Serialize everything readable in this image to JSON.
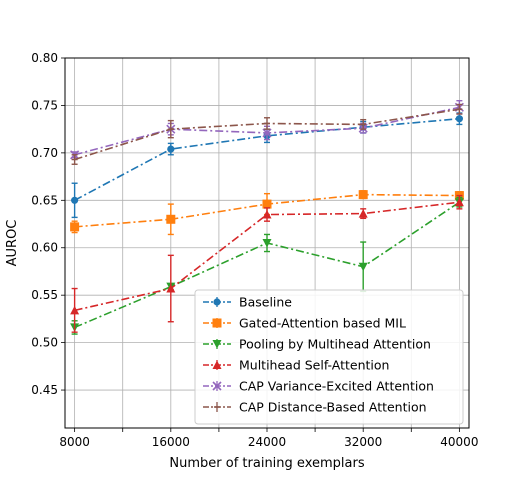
{
  "chart_data": {
    "type": "line",
    "title": "",
    "xlabel": "Number of training exemplars",
    "ylabel": "AUROC",
    "x": [
      8000,
      16000,
      24000,
      32000,
      40000
    ],
    "xticks": [
      8000,
      16000,
      24000,
      32000,
      40000
    ],
    "xtick_labels": [
      "8000",
      "16000",
      "24000",
      "32000",
      "40000"
    ],
    "xlim": [
      7200,
      40800
    ],
    "yticks": [
      0.45,
      0.5,
      0.55,
      0.6,
      0.65,
      0.7,
      0.75,
      0.8
    ],
    "ytick_labels": [
      "0.45",
      "0.50",
      "0.55",
      "0.60",
      "0.65",
      "0.70",
      "0.75",
      "0.80"
    ],
    "ylim": [
      0.41,
      0.8
    ],
    "grid": true,
    "legend_position": "lower-right",
    "series": [
      {
        "name": "Baseline",
        "color": "#1f77b4",
        "marker": "circle",
        "values": [
          0.65,
          0.704,
          0.718,
          0.727,
          0.736
        ],
        "errors": [
          0.018,
          0.006,
          0.007,
          0.006,
          0.006
        ]
      },
      {
        "name": "Gated-Attention based MIL",
        "color": "#ff7f0e",
        "marker": "square",
        "values": [
          0.622,
          0.63,
          0.646,
          0.656,
          0.655
        ],
        "errors": [
          0.006,
          0.016,
          0.011,
          0.004,
          0.004
        ]
      },
      {
        "name": "Pooling by Multihead Attention",
        "color": "#2ca02c",
        "marker": "triangle-down",
        "values": [
          0.516,
          0.559,
          0.605,
          0.58,
          0.648
        ],
        "errors": [
          0.007,
          0.003,
          0.009,
          0.026,
          0.005
        ]
      },
      {
        "name": "Multihead Self-Attention",
        "color": "#d62728",
        "marker": "triangle-up",
        "values": [
          0.534,
          0.557,
          0.635,
          0.636,
          0.648
        ],
        "errors": [
          0.023,
          0.035,
          0.007,
          0.005,
          0.007
        ]
      },
      {
        "name": "CAP Variance-Excited Attention",
        "color": "#9467bd",
        "marker": "x",
        "values": [
          0.698,
          0.725,
          0.721,
          0.726,
          0.748
        ],
        "errors": [
          0.003,
          0.006,
          0.007,
          0.005,
          0.007
        ]
      },
      {
        "name": "CAP Distance-Based Attention",
        "color": "#8c564b",
        "marker": "bar",
        "values": [
          0.693,
          0.725,
          0.731,
          0.73,
          0.746
        ],
        "errors": [
          0.005,
          0.009,
          0.006,
          0.005,
          0.005
        ]
      }
    ]
  }
}
